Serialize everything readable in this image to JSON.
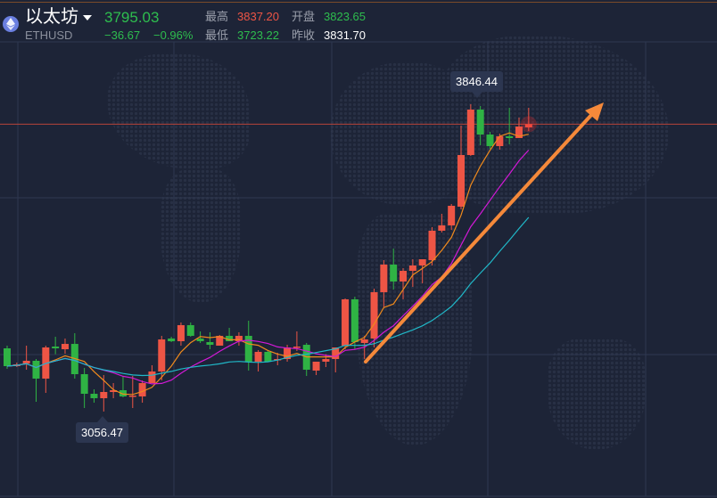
{
  "header": {
    "coin_icon": "ethereum-icon",
    "name": "以太坊",
    "symbol": "ETHUSD",
    "price": "3795.03",
    "change": "−36.67",
    "change_pct": "−0.96%",
    "high_label": "最高",
    "high": "3837.20",
    "low_label": "最低",
    "low": "3723.22",
    "open_label": "开盘",
    "open": "3823.65",
    "prev_close_label": "昨收",
    "prev_close": "3831.70"
  },
  "colors": {
    "up": "#ee5545",
    "down": "#2fb344",
    "ma_short": "#f08a1c",
    "ma_mid": "#d219d6",
    "ma_long": "#20b8c8",
    "arrow": "#f5893a",
    "background": "#1d2437"
  },
  "chart_data": {
    "type": "candlestick",
    "ylim": [
      3000,
      3900
    ],
    "high_marker": "3846.44",
    "low_marker": "3056.47",
    "current_price": 3795.03,
    "ma_periods": [
      5,
      10,
      20
    ],
    "ohlc": [
      [
        3218.9,
        3173.1,
        3225.8,
        3166.2
      ],
      [
        3173.1,
        3177.7,
        3182.3,
        3170.8
      ],
      [
        3180.0,
        3186.9,
        3225.8,
        3163.9
      ],
      [
        3186.9,
        3141.1,
        3191.4,
        3081.5
      ],
      [
        3141.1,
        3221.2,
        3225.8,
        3104.4
      ],
      [
        3223.5,
        3218.9,
        3248.7,
        3203.9
      ],
      [
        3216.6,
        3230.3,
        3244.1,
        3205.2
      ],
      [
        3230.3,
        3152.5,
        3257.8,
        3141.1
      ],
      [
        3152.5,
        3102.1,
        3168.6,
        3065.5
      ],
      [
        3102.1,
        3090.7,
        3113.6,
        3079.2
      ],
      [
        3090.7,
        3106.7,
        3150.2,
        3056.47
      ],
      [
        3106.7,
        3111.3,
        3129.6,
        3090.7
      ],
      [
        3111.3,
        3095.3,
        3147.9,
        3093.0
      ],
      [
        3095.3,
        3097.5,
        3147.9,
        3065.5
      ],
      [
        3095.3,
        3129.6,
        3136.5,
        3079.2
      ],
      [
        3129.6,
        3159.4,
        3175.4,
        3136.5
      ],
      [
        3159.4,
        3241.8,
        3251.0,
        3136.5
      ],
      [
        3244.1,
        3237.2,
        3248.7,
        3234.9
      ],
      [
        3237.2,
        3278.5,
        3285.3,
        3225.8
      ],
      [
        3278.5,
        3251.0,
        3285.3,
        3248.7
      ],
      [
        3244.1,
        3237.2,
        3262.4,
        3232.7
      ],
      [
        3234.9,
        3228.0,
        3260.1,
        3216.6
      ],
      [
        3225.8,
        3251.0,
        3253.3,
        3225.8
      ],
      [
        3251.0,
        3237.2,
        3271.6,
        3237.2
      ],
      [
        3237.2,
        3251.0,
        3260.1,
        3225.8
      ],
      [
        3251.0,
        3184.6,
        3289.9,
        3161.7
      ],
      [
        3184.6,
        3209.8,
        3214.3,
        3159.4
      ],
      [
        3209.8,
        3184.6,
        3214.3,
        3184.6
      ],
      [
        3189.1,
        3191.4,
        3207.5,
        3175.4
      ],
      [
        3191.4,
        3221.2,
        3228.0,
        3184.6
      ],
      [
        3221.2,
        3223.5,
        3262.4,
        3212.0
      ],
      [
        3228.0,
        3163.9,
        3232.7,
        3147.9
      ],
      [
        3161.7,
        3184.6,
        3184.6,
        3150.2
      ],
      [
        3184.6,
        3191.4,
        3203.9,
        3170.8
      ],
      [
        3191.4,
        3221.2,
        3221.2,
        3157.1
      ],
      [
        3225.8,
        3344.9,
        3347.2,
        3216.6
      ],
      [
        3344.9,
        3234.9,
        3351.7,
        3216.6
      ],
      [
        3232.7,
        3241.8,
        3251.0,
        3191.4
      ],
      [
        3244.1,
        3363.2,
        3372.3,
        3221.2
      ],
      [
        3363.2,
        3434.2,
        3445.6,
        3324.2
      ],
      [
        3434.2,
        3390.7,
        3475.4,
        3370.0
      ],
      [
        3390.7,
        3418.1,
        3425.0,
        3344.9
      ],
      [
        3418.1,
        3431.9,
        3447.9,
        3376.9
      ],
      [
        3431.9,
        3447.9,
        3447.9,
        3386.1
      ],
      [
        3445.6,
        3521.2,
        3530.4,
        3431.9
      ],
      [
        3521.2,
        3534.9,
        3564.7,
        3516.6
      ],
      [
        3534.9,
        3585.3,
        3589.9,
        3523.5
      ],
      [
        3583.0,
        3715.8,
        3791.4,
        3576.2
      ],
      [
        3715.8,
        3832.6,
        3846.44,
        3713.5
      ],
      [
        3832.6,
        3768.5,
        3841.8,
        3741.0
      ],
      [
        3768.5,
        3738.7,
        3775.4,
        3731.9
      ],
      [
        3738.7,
        3763.9,
        3770.8,
        3729.6
      ],
      [
        3763.9,
        3759.4,
        3837.2,
        3743.3
      ],
      [
        3759.4,
        3789.1,
        3812.0,
        3759.4
      ],
      [
        3786.8,
        3795.03,
        3837.2,
        3777.7
      ]
    ]
  }
}
